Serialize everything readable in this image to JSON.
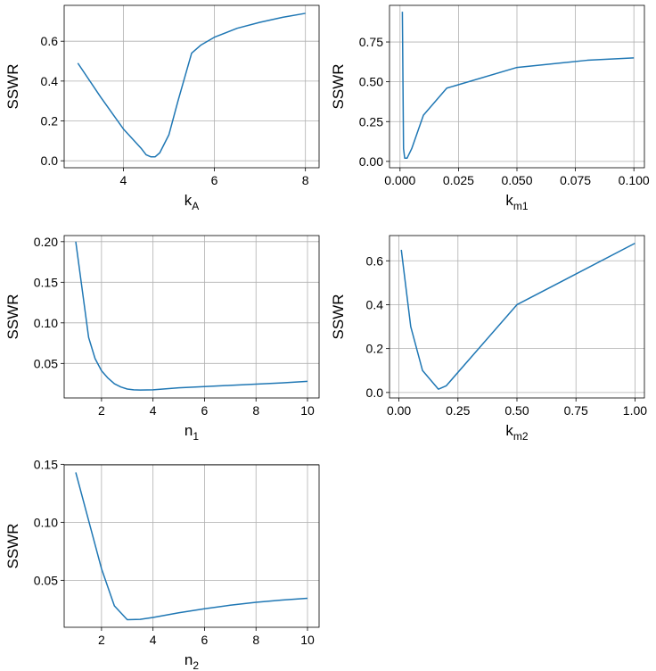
{
  "chart_data": [
    {
      "type": "line",
      "xlabel": "k",
      "xlabel_sub": "A",
      "ylabel": "SSWR",
      "xlim": [
        2.7,
        8.3
      ],
      "ylim": [
        -0.035,
        0.78
      ],
      "xticks": [
        4,
        6,
        8
      ],
      "xtick_labels": [
        "4",
        "6",
        "8"
      ],
      "yticks": [
        0.0,
        0.2,
        0.4,
        0.6
      ],
      "ytick_labels": [
        "0.0",
        "0.2",
        "0.4",
        "0.6"
      ],
      "grid": true,
      "color": "#1f77b4",
      "x": [
        3.0,
        3.5,
        4.0,
        4.2,
        4.4,
        4.5,
        4.6,
        4.7,
        4.8,
        5.0,
        5.2,
        5.5,
        5.7,
        6.0,
        6.5,
        7.0,
        7.5,
        8.0
      ],
      "y": [
        0.49,
        0.32,
        0.16,
        0.11,
        0.06,
        0.03,
        0.02,
        0.02,
        0.04,
        0.13,
        0.3,
        0.54,
        0.58,
        0.62,
        0.665,
        0.695,
        0.72,
        0.74
      ]
    },
    {
      "type": "line",
      "xlabel": "k",
      "xlabel_sub": "m1",
      "ylabel": "SSWR",
      "xlim": [
        -0.0045,
        0.1045
      ],
      "ylim": [
        -0.04,
        0.98
      ],
      "xticks": [
        0.0,
        0.025,
        0.05,
        0.075,
        0.1
      ],
      "xtick_labels": [
        "0.000",
        "0.025",
        "0.050",
        "0.075",
        "0.100"
      ],
      "yticks": [
        0.0,
        0.25,
        0.5,
        0.75
      ],
      "ytick_labels": [
        "0.00",
        "0.25",
        "0.50",
        "0.75"
      ],
      "grid": true,
      "color": "#1f77b4",
      "x": [
        0.001,
        0.0015,
        0.002,
        0.003,
        0.005,
        0.01,
        0.02,
        0.05,
        0.08,
        0.1
      ],
      "y": [
        0.94,
        0.08,
        0.02,
        0.02,
        0.08,
        0.29,
        0.46,
        0.59,
        0.635,
        0.65
      ]
    },
    {
      "type": "line",
      "xlabel": "n",
      "xlabel_sub": "1",
      "ylabel": "SSWR",
      "xlim": [
        0.55,
        10.45
      ],
      "ylim": [
        0.0075,
        0.2075
      ],
      "xticks": [
        2,
        4,
        6,
        8,
        10
      ],
      "xtick_labels": [
        "2",
        "4",
        "6",
        "8",
        "10"
      ],
      "yticks": [
        0.05,
        0.1,
        0.15,
        0.2
      ],
      "ytick_labels": [
        "0.05",
        "0.10",
        "0.15",
        "0.20"
      ],
      "grid": true,
      "color": "#1f77b4",
      "x": [
        1.0,
        1.5,
        1.75,
        2.0,
        2.25,
        2.5,
        2.75,
        3.0,
        3.25,
        3.5,
        4.0,
        5.0,
        6.0,
        7.0,
        8.0,
        9.0,
        10.0
      ],
      "y": [
        0.2,
        0.082,
        0.056,
        0.041,
        0.032,
        0.025,
        0.021,
        0.0185,
        0.0175,
        0.0172,
        0.0175,
        0.02,
        0.0215,
        0.023,
        0.0245,
        0.026,
        0.028
      ]
    },
    {
      "type": "line",
      "xlabel": "k",
      "xlabel_sub": "m2",
      "ylabel": "SSWR",
      "xlim": [
        -0.04,
        1.04
      ],
      "ylim": [
        -0.025,
        0.715
      ],
      "xticks": [
        0.0,
        0.25,
        0.5,
        0.75,
        1.0
      ],
      "xtick_labels": [
        "0.00",
        "0.25",
        "0.50",
        "0.75",
        "1.00"
      ],
      "yticks": [
        0.0,
        0.2,
        0.4,
        0.6
      ],
      "ytick_labels": [
        "0.0",
        "0.2",
        "0.4",
        "0.6"
      ],
      "grid": true,
      "color": "#1f77b4",
      "x": [
        0.01,
        0.05,
        0.1,
        0.167,
        0.2,
        0.5,
        1.0
      ],
      "y": [
        0.65,
        0.3,
        0.1,
        0.015,
        0.03,
        0.4,
        0.68
      ]
    },
    {
      "type": "line",
      "xlabel": "n",
      "xlabel_sub": "2",
      "ylabel": "SSWR",
      "xlim": [
        0.55,
        10.45
      ],
      "ylim": [
        0.0095,
        0.1495
      ],
      "xticks": [
        2,
        4,
        6,
        8,
        10
      ],
      "xtick_labels": [
        "2",
        "4",
        "6",
        "8",
        "10"
      ],
      "yticks": [
        0.05,
        0.1,
        0.15
      ],
      "ytick_labels": [
        "0.05",
        "0.10",
        "0.15"
      ],
      "grid": true,
      "color": "#1f77b4",
      "x": [
        1.0,
        2.0,
        2.5,
        3.0,
        3.5,
        4.0,
        5.0,
        6.0,
        7.0,
        8.0,
        9.0,
        10.0
      ],
      "y": [
        0.143,
        0.06,
        0.028,
        0.016,
        0.0163,
        0.018,
        0.022,
        0.0255,
        0.0285,
        0.031,
        0.033,
        0.0345
      ]
    }
  ]
}
